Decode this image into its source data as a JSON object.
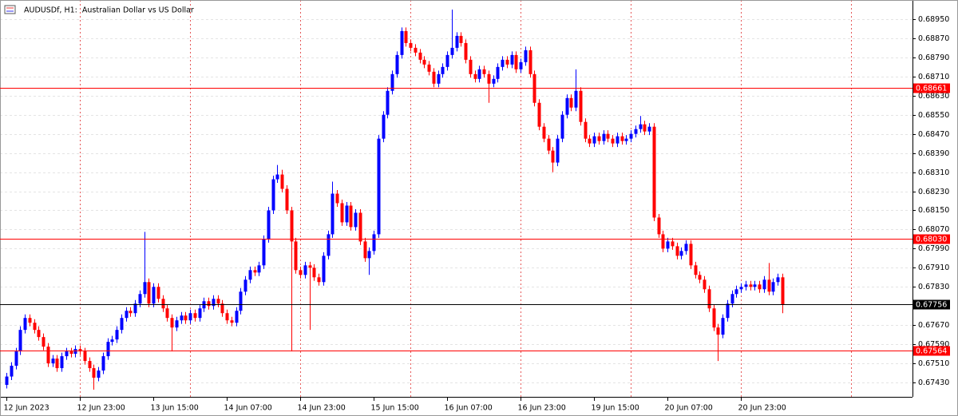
{
  "chart_data": {
    "type": "candlestick",
    "title": "AUDUSDf, H1:  Australian Dollar vs US Dollar",
    "up_color": "#0000ff",
    "down_color": "#ff0000",
    "grid": true,
    "categories": [
      "12 Jun 2023",
      null,
      null,
      null,
      null,
      null,
      null,
      null,
      null,
      null,
      null,
      null,
      null,
      null,
      null,
      null,
      "12 Jun 23:00",
      null,
      null,
      null,
      null,
      null,
      null,
      null,
      null,
      null,
      null,
      null,
      null,
      null,
      null,
      null,
      "13 Jun 15:00",
      null,
      null,
      null,
      null,
      null,
      null,
      null,
      null,
      null,
      null,
      null,
      null,
      null,
      null,
      null,
      "14 Jun 07:00",
      null,
      null,
      null,
      null,
      null,
      null,
      null,
      null,
      null,
      null,
      null,
      null,
      null,
      null,
      null,
      "14 Jun 23:00",
      null,
      null,
      null,
      null,
      null,
      null,
      null,
      null,
      null,
      null,
      null,
      null,
      null,
      null,
      null,
      "15 Jun 15:00",
      null,
      null,
      null,
      null,
      null,
      null,
      null,
      null,
      null,
      null,
      null,
      null,
      null,
      null,
      null,
      "16 Jun 07:00",
      null,
      null,
      null,
      null,
      null,
      null,
      null,
      null,
      null,
      null,
      null,
      null,
      null,
      null,
      null,
      "16 Jun 23:00",
      null,
      null,
      null,
      null,
      null,
      null,
      null,
      null,
      null,
      null,
      null,
      null,
      null,
      null,
      null,
      "19 Jun 15:00",
      null,
      null,
      null,
      null,
      null,
      null,
      null,
      null,
      null,
      null,
      null,
      null,
      null,
      null,
      null,
      "20 Jun 07:00",
      null,
      null,
      null,
      null,
      null,
      null,
      null,
      null,
      null,
      null,
      null,
      null,
      null,
      null,
      null,
      "20 Jun 23:00",
      null,
      null,
      null,
      null,
      null,
      null,
      null,
      null,
      null
    ],
    "open": [
      0.6742,
      0.67455,
      0.675,
      0.6756,
      0.6765,
      0.677,
      0.6768,
      0.6765,
      0.6762,
      0.6758,
      0.6751,
      0.6753,
      0.6749,
      0.6754,
      0.6756,
      0.6755,
      0.6757,
      0.6756,
      0.6752,
      0.6749,
      0.6745,
      0.6748,
      0.6754,
      0.676,
      0.6761,
      0.6765,
      0.677,
      0.6773,
      0.6772,
      0.6776,
      0.678,
      0.6785,
      0.6776,
      0.6783,
      0.6778,
      0.6774,
      0.677,
      0.6766,
      0.6769,
      0.6771,
      0.6769,
      0.6772,
      0.677,
      0.6774,
      0.6777,
      0.6775,
      0.6778,
      0.6776,
      0.6772,
      0.6769,
      0.6768,
      0.6773,
      0.6781,
      0.6786,
      0.679,
      0.6789,
      0.6792,
      0.6803,
      0.6815,
      0.6828,
      0.683,
      0.6824,
      0.6815,
      0.6802,
      0.679,
      0.6788,
      0.6792,
      0.6791,
      0.6787,
      0.6785,
      0.6796,
      0.6805,
      0.6822,
      0.6818,
      0.681,
      0.6817,
      0.6808,
      0.6814,
      0.6802,
      0.6795,
      0.6798,
      0.6805,
      0.6845,
      0.6855,
      0.6865,
      0.6872,
      0.688,
      0.689,
      0.6885,
      0.6883,
      0.6881,
      0.6878,
      0.6876,
      0.6873,
      0.6868,
      0.6872,
      0.6875,
      0.688,
      0.6883,
      0.6888,
      0.6885,
      0.6878,
      0.6872,
      0.687,
      0.6874,
      0.6872,
      0.6868,
      0.687,
      0.6875,
      0.6878,
      0.6876,
      0.688,
      0.6874,
      0.6877,
      0.6882,
      0.6872,
      0.686,
      0.685,
      0.6845,
      0.684,
      0.6835,
      0.6845,
      0.6855,
      0.6862,
      0.6858,
      0.6865,
      0.6852,
      0.6845,
      0.6843,
      0.6846,
      0.6844,
      0.6847,
      0.6845,
      0.6843,
      0.6846,
      0.6844,
      0.6845,
      0.6847,
      0.6849,
      0.6851,
      0.6848,
      0.685,
      0.6812,
      0.6805,
      0.6799,
      0.6802,
      0.68,
      0.6796,
      0.6798,
      0.6801,
      0.6792,
      0.6788,
      0.6786,
      0.6782,
      0.6774,
      0.6766,
      0.6763,
      0.677,
      0.6776,
      0.678,
      0.6782,
      0.6783,
      0.6784,
      0.6783,
      0.6784,
      0.6782,
      0.6786,
      0.6781,
      0.6785,
      0.6787
    ],
    "high": [
      0.6747,
      0.67515,
      0.67575,
      0.67665,
      0.67715,
      0.67715,
      0.67695,
      0.67665,
      0.67635,
      0.67595,
      0.67545,
      0.67545,
      0.67555,
      0.67575,
      0.67575,
      0.67585,
      0.67585,
      0.67575,
      0.67535,
      0.67505,
      0.67495,
      0.67555,
      0.67615,
      0.67625,
      0.67665,
      0.67715,
      0.67745,
      0.67745,
      0.67775,
      0.67815,
      0.6806,
      0.67865,
      0.67845,
      0.67845,
      0.67795,
      0.67755,
      0.67715,
      0.67705,
      0.67725,
      0.67725,
      0.67735,
      0.67735,
      0.67755,
      0.67785,
      0.67785,
      0.67795,
      0.67795,
      0.67775,
      0.67735,
      0.67705,
      0.67745,
      0.67825,
      0.67875,
      0.67915,
      0.67915,
      0.67935,
      0.68045,
      0.68165,
      0.68295,
      0.6834,
      0.6832,
      0.68255,
      0.68165,
      0.68035,
      0.67915,
      0.67935,
      0.67935,
      0.67925,
      0.67885,
      0.67975,
      0.68065,
      0.6827,
      0.68235,
      0.68195,
      0.68185,
      0.68185,
      0.68155,
      0.68155,
      0.68035,
      0.67995,
      0.68065,
      0.68465,
      0.68565,
      0.68665,
      0.68735,
      0.68815,
      0.68915,
      0.68915,
      0.68865,
      0.68845,
      0.68825,
      0.68795,
      0.68775,
      0.68745,
      0.68735,
      0.68765,
      0.68815,
      0.6899,
      0.68895,
      0.68895,
      0.68865,
      0.68795,
      0.68735,
      0.68755,
      0.68755,
      0.68735,
      0.68715,
      0.68765,
      0.68795,
      0.68795,
      0.68815,
      0.68815,
      0.68785,
      0.68835,
      0.68835,
      0.68735,
      0.68615,
      0.68515,
      0.68465,
      0.68415,
      0.68465,
      0.68565,
      0.68635,
      0.68635,
      0.6874,
      0.68665,
      0.68535,
      0.68465,
      0.68475,
      0.68475,
      0.68485,
      0.68485,
      0.68465,
      0.68475,
      0.68475,
      0.68465,
      0.68485,
      0.68505,
      0.68545,
      0.68525,
      0.68515,
      0.68515,
      0.68135,
      0.68065,
      0.68035,
      0.68035,
      0.68015,
      0.67995,
      0.68025,
      0.68025,
      0.67935,
      0.67895,
      0.67875,
      0.67835,
      0.67755,
      0.67675,
      0.67715,
      0.67775,
      0.67815,
      0.67835,
      0.67845,
      0.67855,
      0.67855,
      0.67855,
      0.67855,
      0.67875,
      0.6793,
      0.67865,
      0.67885,
      0.67885
    ],
    "low": [
      0.67405,
      0.6744,
      0.67485,
      0.67545,
      0.67635,
      0.67665,
      0.67635,
      0.67605,
      0.67565,
      0.67495,
      0.67495,
      0.67475,
      0.67475,
      0.67525,
      0.67535,
      0.67535,
      0.67545,
      0.67505,
      0.67475,
      0.674,
      0.67435,
      0.67465,
      0.67525,
      0.67585,
      0.67595,
      0.67635,
      0.67685,
      0.67705,
      0.67705,
      0.67745,
      0.67785,
      0.67745,
      0.67745,
      0.67765,
      0.67725,
      0.67685,
      0.6756,
      0.67645,
      0.67675,
      0.67675,
      0.67675,
      0.67685,
      0.67685,
      0.67725,
      0.67735,
      0.67735,
      0.67745,
      0.67705,
      0.67675,
      0.67665,
      0.67665,
      0.67715,
      0.67795,
      0.67845,
      0.67875,
      0.67875,
      0.67905,
      0.68015,
      0.68135,
      0.68265,
      0.68225,
      0.68135,
      0.6756,
      0.67885,
      0.67865,
      0.67865,
      0.6765,
      0.67855,
      0.67835,
      0.67835,
      0.67945,
      0.68035,
      0.68165,
      0.68085,
      0.68085,
      0.68065,
      0.68065,
      0.68005,
      0.67935,
      0.6788,
      0.67965,
      0.68035,
      0.68435,
      0.68535,
      0.68635,
      0.68705,
      0.68785,
      0.68835,
      0.68815,
      0.68795,
      0.68765,
      0.68745,
      0.68715,
      0.68665,
      0.68665,
      0.68705,
      0.68735,
      0.68785,
      0.68815,
      0.68835,
      0.68765,
      0.68705,
      0.68685,
      0.68685,
      0.68705,
      0.686,
      0.68665,
      0.68685,
      0.68735,
      0.68745,
      0.68745,
      0.68725,
      0.68725,
      0.68755,
      0.68705,
      0.68585,
      0.68485,
      0.68435,
      0.68385,
      0.6831,
      0.68335,
      0.68435,
      0.68535,
      0.68565,
      0.68565,
      0.68505,
      0.68435,
      0.68415,
      0.68415,
      0.68425,
      0.68425,
      0.68435,
      0.68415,
      0.68415,
      0.68425,
      0.68425,
      0.68435,
      0.68455,
      0.68475,
      0.68465,
      0.68465,
      0.68105,
      0.68035,
      0.67975,
      0.67975,
      0.67985,
      0.67945,
      0.67945,
      0.67965,
      0.67905,
      0.67865,
      0.67845,
      0.67805,
      0.67725,
      0.67645,
      0.6752,
      0.67615,
      0.67685,
      0.67745,
      0.67785,
      0.67805,
      0.67815,
      0.67815,
      0.67815,
      0.67805,
      0.67805,
      0.67795,
      0.67795,
      0.67835,
      0.6772
    ],
    "close": [
      0.67455,
      0.675,
      0.6756,
      0.6765,
      0.677,
      0.6768,
      0.6765,
      0.6762,
      0.6758,
      0.6751,
      0.6753,
      0.6749,
      0.6754,
      0.6756,
      0.6755,
      0.6757,
      0.6756,
      0.6752,
      0.6749,
      0.6745,
      0.6748,
      0.6754,
      0.676,
      0.6761,
      0.6765,
      0.677,
      0.6773,
      0.6772,
      0.6776,
      0.678,
      0.6785,
      0.6776,
      0.6783,
      0.6778,
      0.6774,
      0.677,
      0.6766,
      0.6769,
      0.6771,
      0.6769,
      0.6772,
      0.677,
      0.6774,
      0.6777,
      0.6775,
      0.6778,
      0.6776,
      0.6772,
      0.6769,
      0.6768,
      0.6773,
      0.6781,
      0.6786,
      0.679,
      0.6789,
      0.6792,
      0.6803,
      0.6815,
      0.6828,
      0.683,
      0.6824,
      0.6815,
      0.6802,
      0.679,
      0.6788,
      0.6792,
      0.6791,
      0.6787,
      0.6785,
      0.6796,
      0.6805,
      0.6822,
      0.6818,
      0.681,
      0.6817,
      0.6808,
      0.6814,
      0.6802,
      0.6795,
      0.6798,
      0.6805,
      0.6845,
      0.6855,
      0.6865,
      0.6872,
      0.688,
      0.689,
      0.6885,
      0.6883,
      0.6881,
      0.6878,
      0.6876,
      0.6873,
      0.6868,
      0.6872,
      0.6875,
      0.688,
      0.6883,
      0.6888,
      0.6885,
      0.6878,
      0.6872,
      0.687,
      0.6874,
      0.6872,
      0.6868,
      0.687,
      0.6875,
      0.6878,
      0.6876,
      0.688,
      0.6874,
      0.6877,
      0.6882,
      0.6872,
      0.686,
      0.685,
      0.6845,
      0.684,
      0.6835,
      0.6845,
      0.6855,
      0.6862,
      0.6858,
      0.6865,
      0.6852,
      0.6845,
      0.6843,
      0.6846,
      0.6844,
      0.6847,
      0.6845,
      0.6843,
      0.6846,
      0.6844,
      0.6845,
      0.6847,
      0.6849,
      0.6851,
      0.6848,
      0.685,
      0.6812,
      0.6805,
      0.6799,
      0.6802,
      0.68,
      0.6796,
      0.6798,
      0.6801,
      0.6792,
      0.6788,
      0.6786,
      0.6782,
      0.6774,
      0.6766,
      0.6763,
      0.677,
      0.6776,
      0.678,
      0.6782,
      0.6783,
      0.6784,
      0.6783,
      0.6784,
      0.6782,
      0.6786,
      0.6781,
      0.6785,
      0.6787,
      0.67756
    ],
    "ylim": [
      0.6737,
      0.6902
    ],
    "yticks": [
      {
        "value": 0.6895,
        "label": "0.68950"
      },
      {
        "value": 0.6887,
        "label": "0.68870"
      },
      {
        "value": 0.6879,
        "label": "0.68790"
      },
      {
        "value": 0.6871,
        "label": "0.68710"
      },
      {
        "value": 0.6863,
        "label": "0.68630"
      },
      {
        "value": 0.6855,
        "label": "0.68550"
      },
      {
        "value": 0.6847,
        "label": "0.68470"
      },
      {
        "value": 0.6839,
        "label": "0.68390"
      },
      {
        "value": 0.6831,
        "label": "0.68310"
      },
      {
        "value": 0.6823,
        "label": "0.68230"
      },
      {
        "value": 0.6815,
        "label": "0.68150"
      },
      {
        "value": 0.6807,
        "label": "0.68070"
      },
      {
        "value": 0.6799,
        "label": "0.67990"
      },
      {
        "value": 0.6791,
        "label": "0.67910"
      },
      {
        "value": 0.6783,
        "label": "0.67830"
      },
      {
        "value": 0.6767,
        "label": "0.67670"
      },
      {
        "value": 0.6759,
        "label": "0.67590"
      },
      {
        "value": 0.6751,
        "label": "0.67510"
      },
      {
        "value": 0.6743,
        "label": "0.67430"
      }
    ],
    "levels": [
      {
        "value": 0.68661,
        "label": "0.68661",
        "color": "#ff0000"
      },
      {
        "value": 0.6803,
        "label": "0.68030",
        "color": "#ff0000"
      },
      {
        "value": 0.67756,
        "label": "0.67756",
        "color": "#000000"
      },
      {
        "value": 0.67564,
        "label": "0.67564",
        "color": "#ff0000"
      }
    ]
  }
}
